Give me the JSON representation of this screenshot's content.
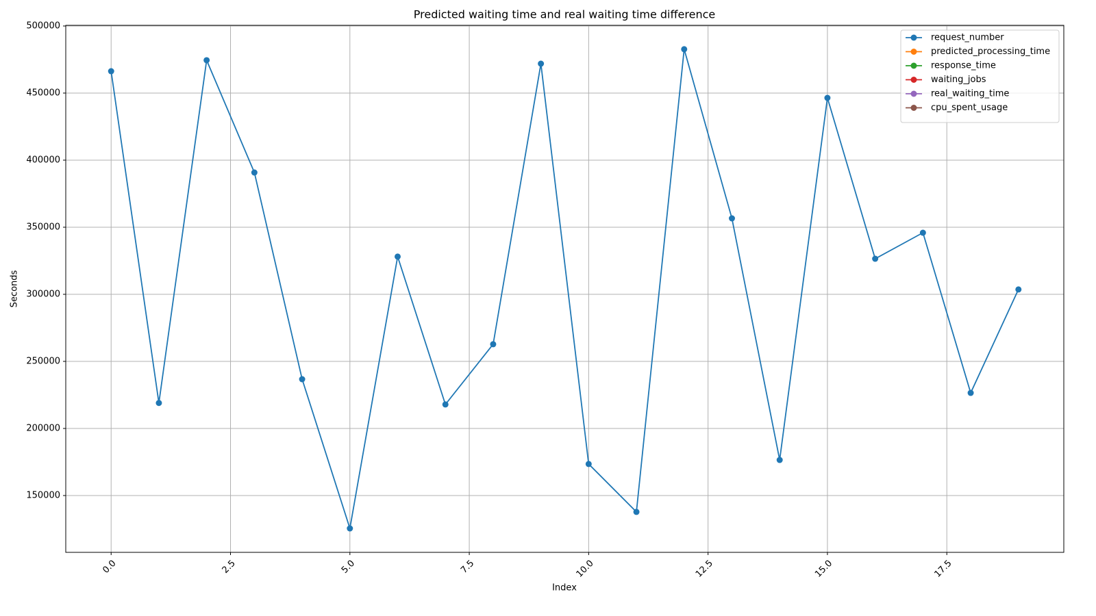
{
  "chart_data": {
    "type": "line",
    "title": "Predicted waiting time and real waiting time difference",
    "xlabel": "Index",
    "ylabel": "Seconds",
    "x": [
      0,
      1,
      2,
      3,
      4,
      5,
      6,
      7,
      8,
      9,
      10,
      11,
      12,
      13,
      14,
      15,
      16,
      17,
      18,
      19
    ],
    "series": [
      {
        "name": "request_number",
        "color": "#1f77b4",
        "values": [
          466300,
          219000,
          474500,
          390800,
          236700,
          125500,
          328100,
          217900,
          262800,
          471900,
          173500,
          137800,
          482700,
          356600,
          176500,
          446400,
          326500,
          345900,
          226500,
          303600
        ]
      },
      {
        "name": "predicted_processing_time",
        "color": "#ff7f0e",
        "values": [
          null,
          null,
          null,
          null,
          null,
          null,
          null,
          null,
          null,
          null,
          null,
          null,
          null,
          null,
          null,
          null,
          null,
          null,
          null,
          null
        ]
      },
      {
        "name": "response_time",
        "color": "#2ca02c",
        "values": [
          null,
          null,
          null,
          null,
          null,
          null,
          null,
          null,
          null,
          null,
          null,
          null,
          null,
          null,
          null,
          null,
          null,
          null,
          null,
          null
        ]
      },
      {
        "name": "waiting_jobs",
        "color": "#d62728",
        "values": [
          null,
          null,
          null,
          null,
          null,
          null,
          null,
          null,
          null,
          null,
          null,
          null,
          null,
          null,
          null,
          null,
          null,
          null,
          null,
          null
        ]
      },
      {
        "name": "real_waiting_time",
        "color": "#9467bd",
        "values": [
          null,
          null,
          null,
          null,
          null,
          null,
          null,
          null,
          null,
          null,
          null,
          null,
          null,
          null,
          null,
          null,
          null,
          null,
          null,
          null
        ]
      },
      {
        "name": "cpu_spent_usage",
        "color": "#8c564b",
        "values": [
          null,
          null,
          null,
          null,
          null,
          null,
          null,
          null,
          null,
          null,
          null,
          null,
          null,
          null,
          null,
          null,
          null,
          null,
          null,
          null
        ]
      }
    ],
    "xlim": [
      -0.95,
      19.95
    ],
    "ylim": [
      107650,
      500500
    ],
    "xticks": [
      {
        "value": 0,
        "label": "0.0"
      },
      2.5,
      {
        "value": 5,
        "label": "5.0"
      },
      7.5,
      {
        "value": 10,
        "label": "10.0"
      },
      12.5,
      {
        "value": 15,
        "label": "15.0"
      },
      17.5
    ],
    "yticks": [
      150000,
      200000,
      250000,
      300000,
      350000,
      400000,
      450000,
      500000
    ],
    "grid": true,
    "legend": "upper right",
    "markers": true
  }
}
